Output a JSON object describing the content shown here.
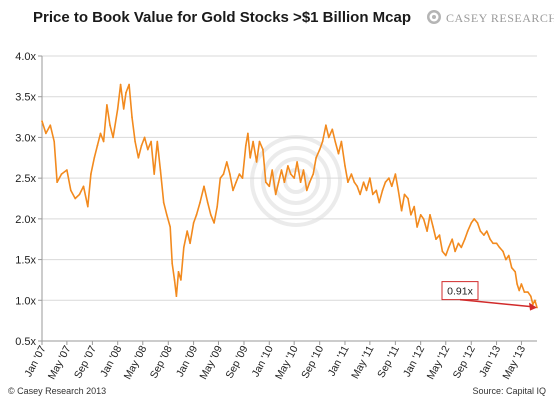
{
  "header": {
    "title": "Price to Book Value for Gold Stocks >$1 Billion Mcap",
    "logo_text": "CASEY RESEARCH.COM"
  },
  "footer": {
    "left": "© Casey Research 2013",
    "right": "Source: Capital IQ"
  },
  "colors": {
    "line": "#F28A1E",
    "grid": "#d9d9d9",
    "axis": "#9a9a9a",
    "annotation": "#d12a2a"
  },
  "chart_data": {
    "type": "line",
    "title": "Price to Book Value for Gold Stocks >$1 Billion Mcap",
    "xlabel": "",
    "ylabel": "",
    "ylim": [
      0.5,
      4.0
    ],
    "xlim": [
      "2007-01-01",
      "2013-07-15"
    ],
    "grid": true,
    "y_ticks": [
      "0.5x",
      "1.0x",
      "1.5x",
      "2.0x",
      "2.5x",
      "3.0x",
      "3.5x",
      "4.0x"
    ],
    "y_tick_values": [
      0.5,
      1.0,
      1.5,
      2.0,
      2.5,
      3.0,
      3.5,
      4.0
    ],
    "x_ticks": [
      {
        "label": "Jan '07",
        "date": "2007-01-01"
      },
      {
        "label": "May '07",
        "date": "2007-05-01"
      },
      {
        "label": "Sep '07",
        "date": "2007-09-01"
      },
      {
        "label": "Jan '08",
        "date": "2008-01-01"
      },
      {
        "label": "May '08",
        "date": "2008-05-01"
      },
      {
        "label": "Sep '08",
        "date": "2008-09-01"
      },
      {
        "label": "Jan '09",
        "date": "2009-01-01"
      },
      {
        "label": "May '09",
        "date": "2009-05-01"
      },
      {
        "label": "Sep '09",
        "date": "2009-09-01"
      },
      {
        "label": "Jan '10",
        "date": "2010-01-01"
      },
      {
        "label": "May '10",
        "date": "2010-05-01"
      },
      {
        "label": "Sep '10",
        "date": "2010-09-01"
      },
      {
        "label": "Jan '11",
        "date": "2011-01-01"
      },
      {
        "label": "May '11",
        "date": "2011-05-01"
      },
      {
        "label": "Sep '11",
        "date": "2011-09-01"
      },
      {
        "label": "Jan '12",
        "date": "2012-01-01"
      },
      {
        "label": "May '12",
        "date": "2012-05-01"
      },
      {
        "label": "Sep '12",
        "date": "2012-09-01"
      },
      {
        "label": "Jan '13",
        "date": "2013-01-01"
      },
      {
        "label": "May '13",
        "date": "2013-05-01"
      }
    ],
    "series": [
      {
        "points": [
          [
            "2007-01-01",
            3.2
          ],
          [
            "2007-01-20",
            3.05
          ],
          [
            "2007-02-10",
            3.15
          ],
          [
            "2007-03-01",
            2.95
          ],
          [
            "2007-03-15",
            2.45
          ],
          [
            "2007-04-05",
            2.55
          ],
          [
            "2007-05-01",
            2.6
          ],
          [
            "2007-05-20",
            2.35
          ],
          [
            "2007-06-10",
            2.25
          ],
          [
            "2007-07-01",
            2.3
          ],
          [
            "2007-07-20",
            2.4
          ],
          [
            "2007-08-10",
            2.15
          ],
          [
            "2007-08-25",
            2.55
          ],
          [
            "2007-09-10",
            2.75
          ],
          [
            "2007-09-25",
            2.9
          ],
          [
            "2007-10-10",
            3.05
          ],
          [
            "2007-10-25",
            2.95
          ],
          [
            "2007-11-10",
            3.4
          ],
          [
            "2007-11-25",
            3.15
          ],
          [
            "2007-12-10",
            3.0
          ],
          [
            "2008-01-01",
            3.35
          ],
          [
            "2008-01-15",
            3.65
          ],
          [
            "2008-01-30",
            3.35
          ],
          [
            "2008-02-10",
            3.55
          ],
          [
            "2008-02-25",
            3.65
          ],
          [
            "2008-03-10",
            3.25
          ],
          [
            "2008-03-25",
            2.95
          ],
          [
            "2008-04-10",
            2.75
          ],
          [
            "2008-04-25",
            2.9
          ],
          [
            "2008-05-10",
            3.0
          ],
          [
            "2008-05-25",
            2.85
          ],
          [
            "2008-06-10",
            2.95
          ],
          [
            "2008-06-25",
            2.55
          ],
          [
            "2008-07-10",
            2.95
          ],
          [
            "2008-07-25",
            2.6
          ],
          [
            "2008-08-10",
            2.2
          ],
          [
            "2008-08-25",
            2.05
          ],
          [
            "2008-09-10",
            1.9
          ],
          [
            "2008-09-20",
            1.45
          ],
          [
            "2008-10-01",
            1.25
          ],
          [
            "2008-10-10",
            1.05
          ],
          [
            "2008-10-20",
            1.35
          ],
          [
            "2008-11-01",
            1.25
          ],
          [
            "2008-11-15",
            1.65
          ],
          [
            "2008-12-01",
            1.85
          ],
          [
            "2008-12-15",
            1.7
          ],
          [
            "2009-01-01",
            1.95
          ],
          [
            "2009-01-15",
            2.05
          ],
          [
            "2009-02-01",
            2.2
          ],
          [
            "2009-02-20",
            2.4
          ],
          [
            "2009-03-10",
            2.2
          ],
          [
            "2009-03-25",
            2.05
          ],
          [
            "2009-04-10",
            1.95
          ],
          [
            "2009-04-25",
            2.15
          ],
          [
            "2009-05-10",
            2.5
          ],
          [
            "2009-05-25",
            2.55
          ],
          [
            "2009-06-10",
            2.7
          ],
          [
            "2009-06-25",
            2.55
          ],
          [
            "2009-07-10",
            2.35
          ],
          [
            "2009-07-25",
            2.45
          ],
          [
            "2009-08-10",
            2.55
          ],
          [
            "2009-08-25",
            2.5
          ],
          [
            "2009-09-10",
            2.9
          ],
          [
            "2009-09-20",
            3.05
          ],
          [
            "2009-10-01",
            2.75
          ],
          [
            "2009-10-15",
            2.95
          ],
          [
            "2009-11-01",
            2.7
          ],
          [
            "2009-11-15",
            2.95
          ],
          [
            "2009-12-01",
            2.85
          ],
          [
            "2009-12-15",
            2.45
          ],
          [
            "2010-01-01",
            2.4
          ],
          [
            "2010-01-15",
            2.6
          ],
          [
            "2010-02-01",
            2.3
          ],
          [
            "2010-02-15",
            2.45
          ],
          [
            "2010-03-01",
            2.6
          ],
          [
            "2010-03-15",
            2.45
          ],
          [
            "2010-04-01",
            2.65
          ],
          [
            "2010-04-15",
            2.55
          ],
          [
            "2010-05-01",
            2.5
          ],
          [
            "2010-05-15",
            2.7
          ],
          [
            "2010-06-01",
            2.45
          ],
          [
            "2010-06-15",
            2.6
          ],
          [
            "2010-07-01",
            2.35
          ],
          [
            "2010-07-15",
            2.45
          ],
          [
            "2010-08-01",
            2.55
          ],
          [
            "2010-08-15",
            2.75
          ],
          [
            "2010-09-01",
            2.85
          ],
          [
            "2010-09-15",
            2.95
          ],
          [
            "2010-10-01",
            3.15
          ],
          [
            "2010-10-15",
            3.0
          ],
          [
            "2010-11-01",
            3.1
          ],
          [
            "2010-11-15",
            2.95
          ],
          [
            "2010-12-01",
            2.8
          ],
          [
            "2010-12-15",
            2.95
          ],
          [
            "2011-01-01",
            2.65
          ],
          [
            "2011-01-15",
            2.45
          ],
          [
            "2011-02-01",
            2.55
          ],
          [
            "2011-02-15",
            2.45
          ],
          [
            "2011-03-01",
            2.4
          ],
          [
            "2011-03-15",
            2.3
          ],
          [
            "2011-04-01",
            2.45
          ],
          [
            "2011-04-15",
            2.35
          ],
          [
            "2011-05-01",
            2.5
          ],
          [
            "2011-05-15",
            2.3
          ],
          [
            "2011-06-01",
            2.35
          ],
          [
            "2011-06-15",
            2.2
          ],
          [
            "2011-07-01",
            2.35
          ],
          [
            "2011-07-15",
            2.45
          ],
          [
            "2011-08-01",
            2.5
          ],
          [
            "2011-08-15",
            2.4
          ],
          [
            "2011-09-01",
            2.55
          ],
          [
            "2011-09-15",
            2.35
          ],
          [
            "2011-10-01",
            2.1
          ],
          [
            "2011-10-15",
            2.3
          ],
          [
            "2011-11-01",
            2.25
          ],
          [
            "2011-11-15",
            2.05
          ],
          [
            "2011-12-01",
            2.15
          ],
          [
            "2011-12-15",
            1.9
          ],
          [
            "2012-01-01",
            2.05
          ],
          [
            "2012-01-15",
            2.0
          ],
          [
            "2012-02-01",
            1.85
          ],
          [
            "2012-02-15",
            2.05
          ],
          [
            "2012-03-01",
            1.9
          ],
          [
            "2012-03-15",
            1.75
          ],
          [
            "2012-04-01",
            1.8
          ],
          [
            "2012-04-15",
            1.6
          ],
          [
            "2012-05-01",
            1.55
          ],
          [
            "2012-05-15",
            1.65
          ],
          [
            "2012-06-01",
            1.75
          ],
          [
            "2012-06-15",
            1.6
          ],
          [
            "2012-07-01",
            1.7
          ],
          [
            "2012-07-15",
            1.65
          ],
          [
            "2012-08-01",
            1.75
          ],
          [
            "2012-08-15",
            1.85
          ],
          [
            "2012-09-01",
            1.95
          ],
          [
            "2012-09-15",
            2.0
          ],
          [
            "2012-10-01",
            1.95
          ],
          [
            "2012-10-15",
            1.85
          ],
          [
            "2012-11-01",
            1.8
          ],
          [
            "2012-11-15",
            1.85
          ],
          [
            "2012-12-01",
            1.75
          ],
          [
            "2012-12-15",
            1.7
          ],
          [
            "2013-01-01",
            1.7
          ],
          [
            "2013-01-15",
            1.65
          ],
          [
            "2013-02-01",
            1.6
          ],
          [
            "2013-02-15",
            1.5
          ],
          [
            "2013-03-01",
            1.55
          ],
          [
            "2013-03-15",
            1.4
          ],
          [
            "2013-04-01",
            1.35
          ],
          [
            "2013-04-10",
            1.2
          ],
          [
            "2013-04-20",
            1.12
          ],
          [
            "2013-05-01",
            1.2
          ],
          [
            "2013-05-15",
            1.1
          ],
          [
            "2013-06-01",
            1.1
          ],
          [
            "2013-06-15",
            1.05
          ],
          [
            "2013-06-25",
            0.95
          ],
          [
            "2013-07-05",
            1.0
          ],
          [
            "2013-07-15",
            0.91
          ]
        ]
      }
    ],
    "annotations": [
      {
        "text": "0.91x",
        "value": 0.91,
        "date": "2013-07-15"
      }
    ]
  }
}
